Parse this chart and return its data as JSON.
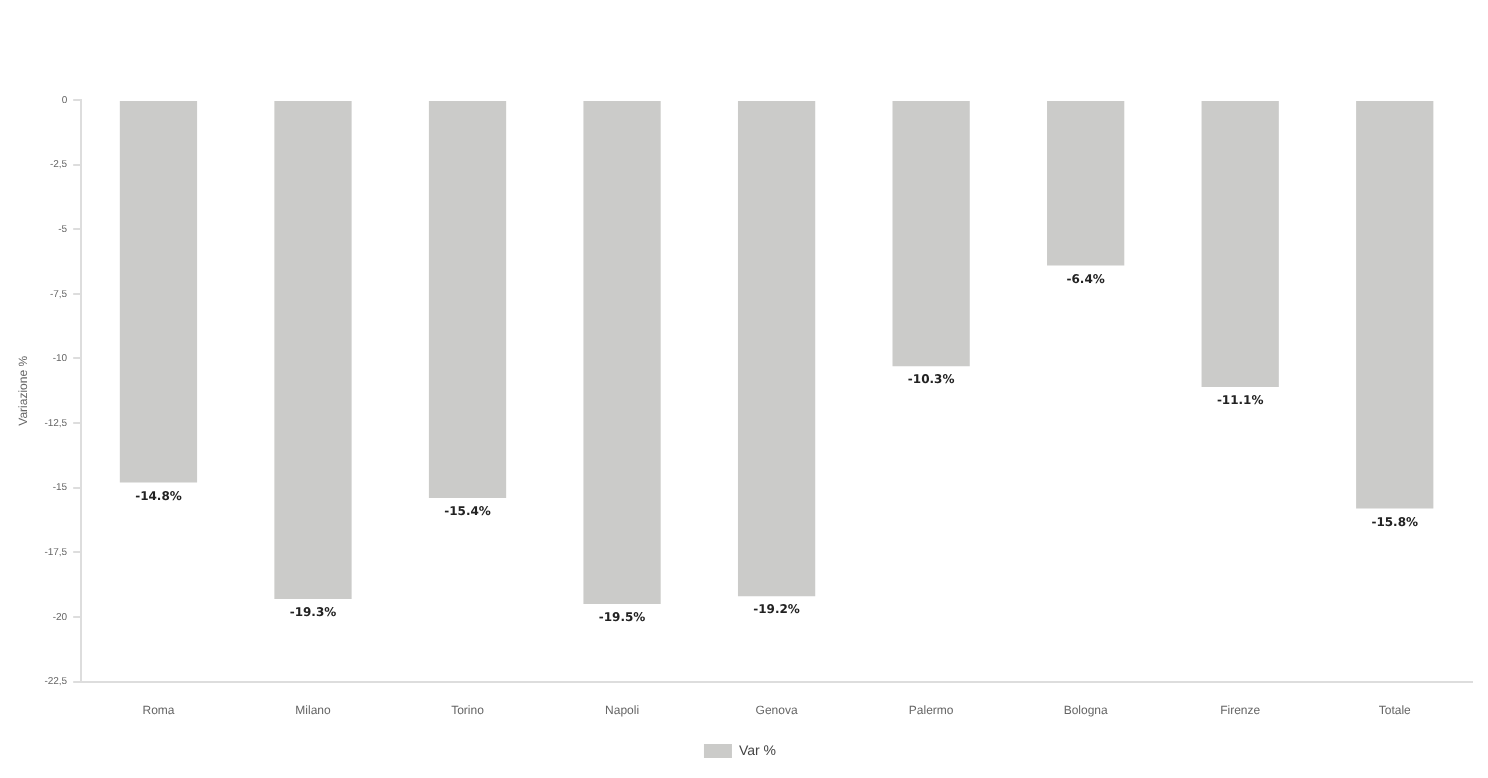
{
  "chart_data": {
    "type": "bar",
    "ylabel": "Variazione %",
    "categories": [
      "Roma",
      "Milano",
      "Torino",
      "Napoli",
      "Genova",
      "Palermo",
      "Bologna",
      "Firenze",
      "Totale"
    ],
    "series": [
      {
        "name": "Var %",
        "color": "#cbcbc9",
        "values": [
          -14.8,
          -19.3,
          -15.4,
          -19.5,
          -19.2,
          -10.3,
          -6.4,
          -11.1,
          -15.8
        ],
        "value_labels": [
          "-14.8%",
          "-19.3%",
          "-15.4%",
          "-19.5%",
          "-19.2%",
          "-10.3%",
          "-6.4%",
          "-11.1%",
          "-15.8%"
        ]
      }
    ],
    "ylim": [
      -22.5,
      0
    ],
    "yticks": [
      0,
      {
        "value": -2.5,
        "label": "-2,5"
      },
      -5,
      {
        "value": -7.5,
        "label": "-7,5"
      },
      -10,
      {
        "value": -12.5,
        "label": "-12,5"
      },
      -15,
      {
        "value": -17.5,
        "label": "-17,5"
      },
      -20,
      {
        "value": -22.5,
        "label": "-22,5"
      }
    ],
    "grid": false,
    "legend": "bottom"
  }
}
